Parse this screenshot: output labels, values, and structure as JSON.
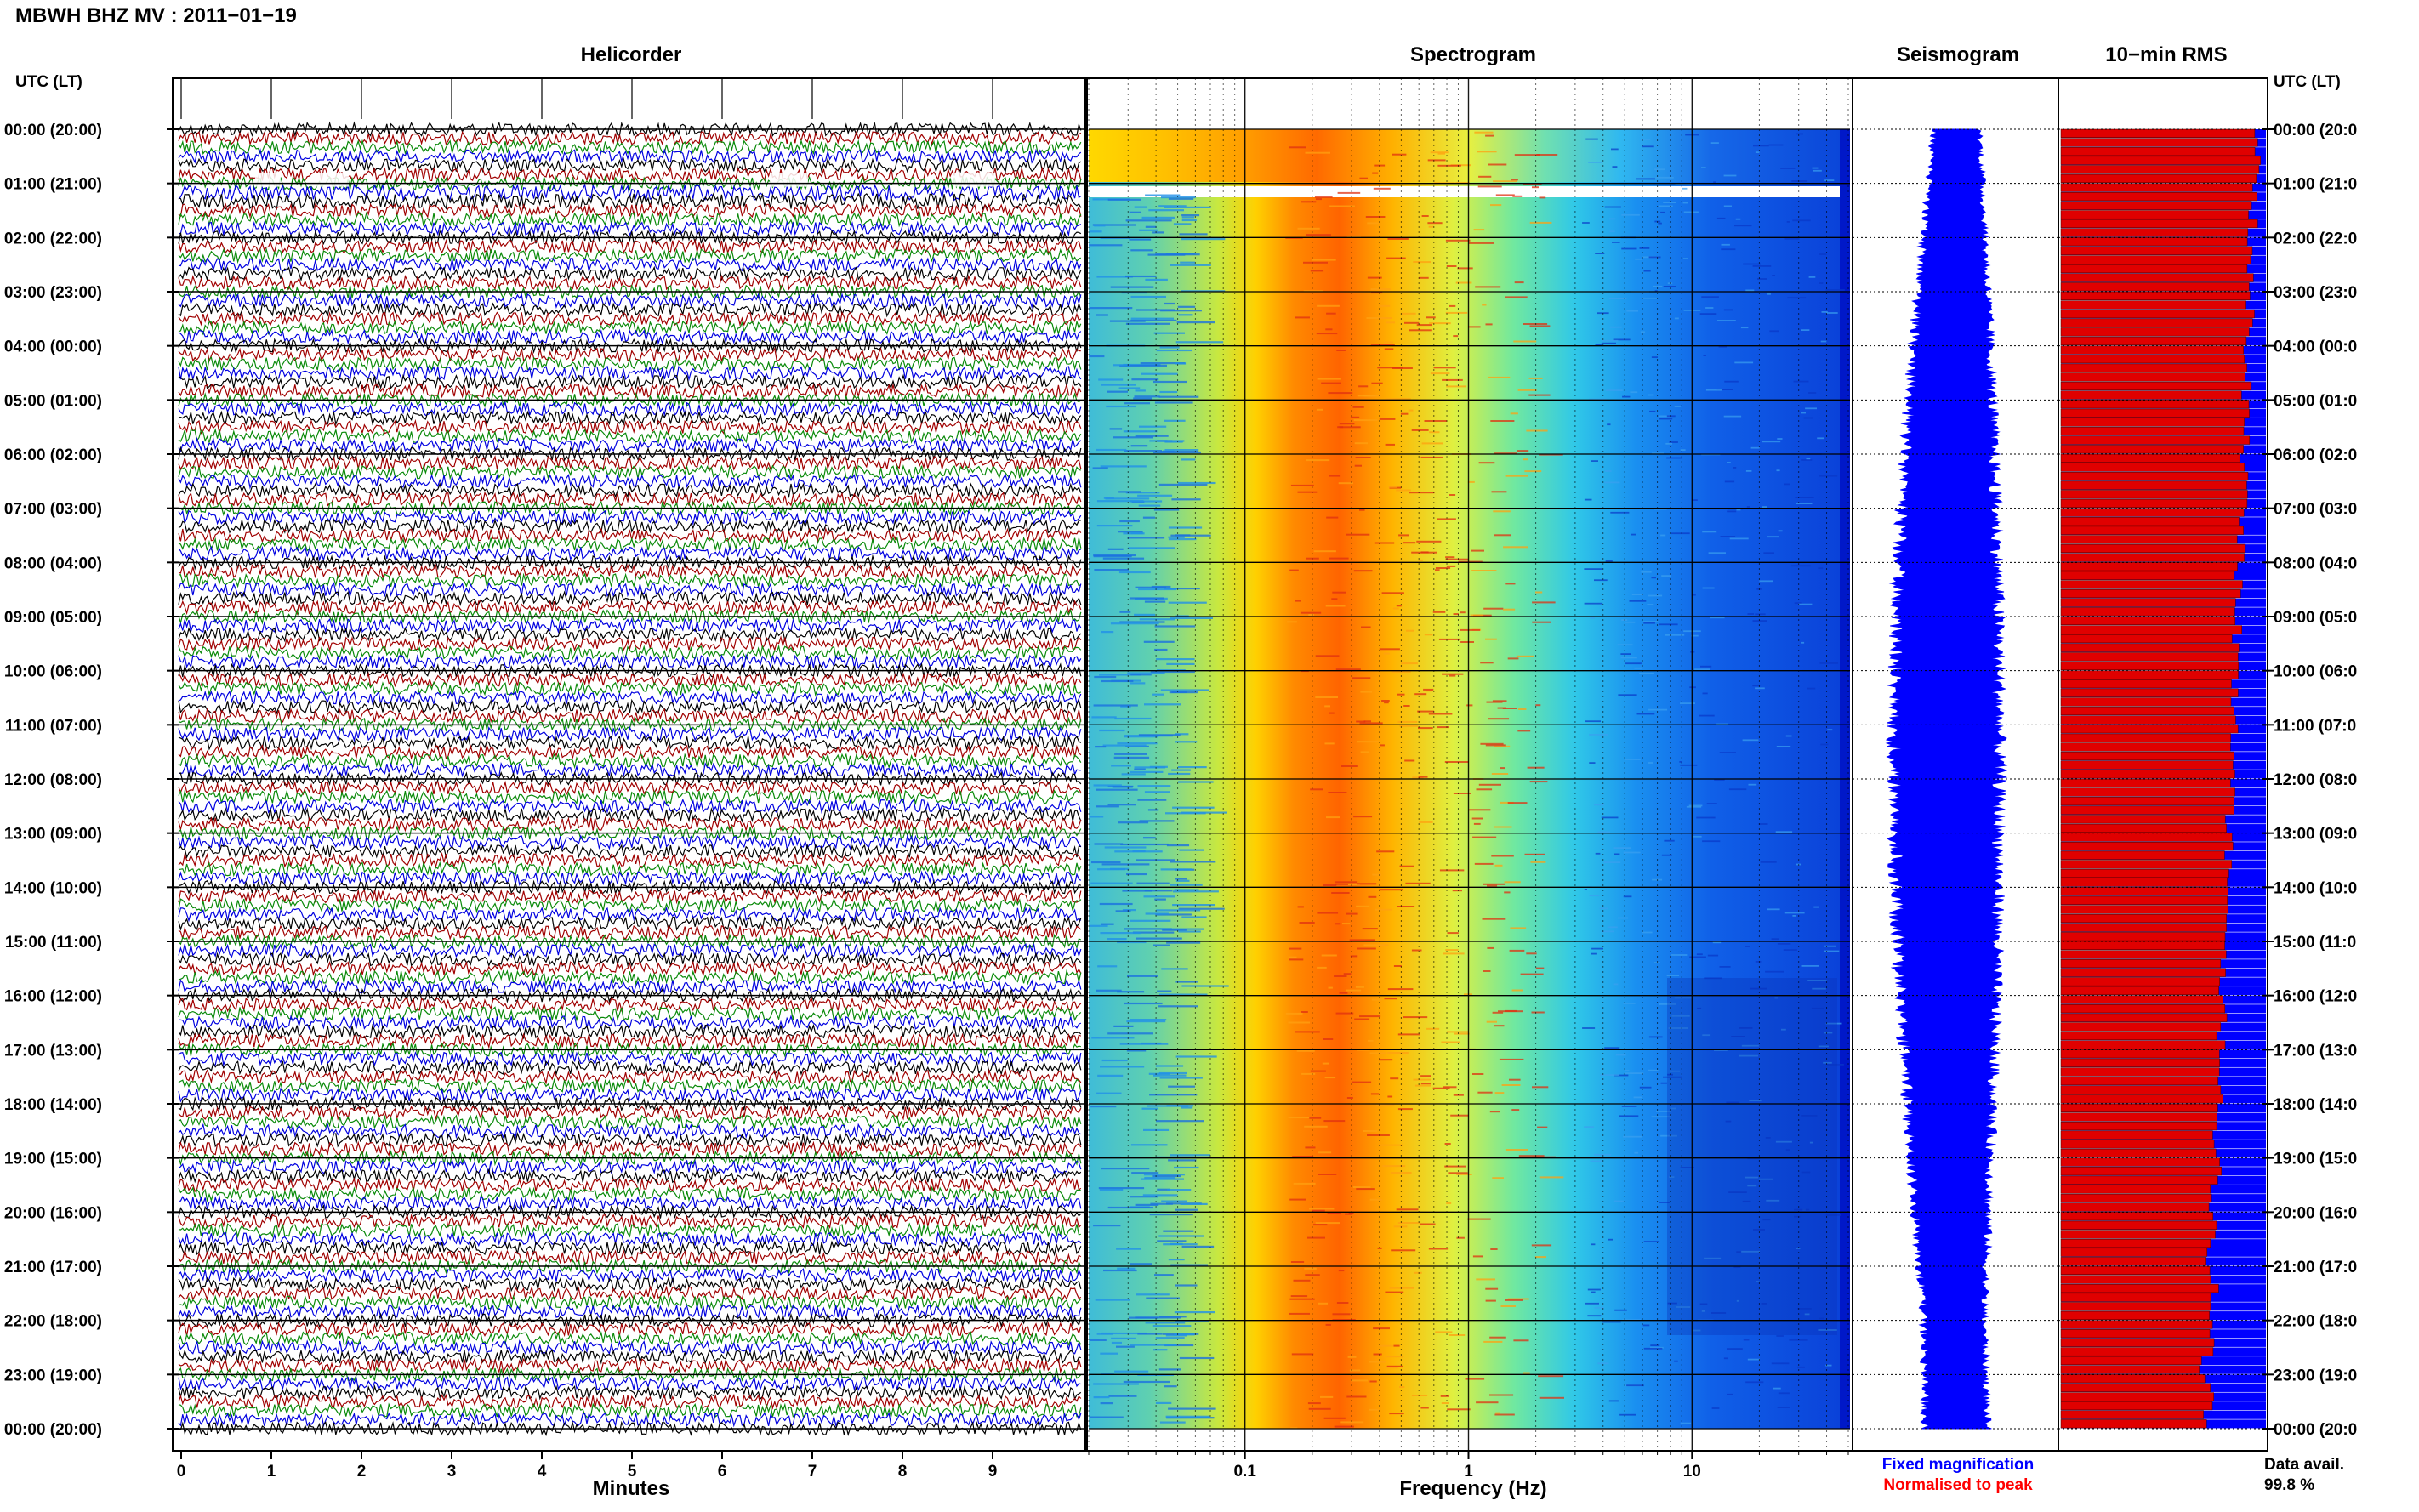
{
  "header": {
    "title": "MBWH BHZ MV : 2011−01−19"
  },
  "panels": {
    "helicorder": "Helicorder",
    "spectrogram": "Spectrogram",
    "seismogram": "Seismogram",
    "rms": "10−min RMS"
  },
  "axis_title_left": "UTC (LT)",
  "axis_title_right": "UTC (LT)",
  "time_labels": [
    "00:00 (20:00)",
    "01:00 (21:00)",
    "02:00 (22:00)",
    "03:00 (23:00)",
    "04:00 (00:00)",
    "05:00 (01:00)",
    "06:00 (02:00)",
    "07:00 (03:00)",
    "08:00 (04:00)",
    "09:00 (05:00)",
    "10:00 (06:00)",
    "11:00 (07:00)",
    "12:00 (08:00)",
    "13:00 (09:00)",
    "14:00 (10:00)",
    "15:00 (11:00)",
    "16:00 (12:00)",
    "17:00 (13:00)",
    "18:00 (14:00)",
    "19:00 (15:00)",
    "20:00 (16:00)",
    "21:00 (17:00)",
    "22:00 (18:00)",
    "23:00 (19:00)",
    "00:00 (20:00)"
  ],
  "right_time_labels": [
    "00:00 (20:0",
    "01:00 (21:0",
    "02:00 (22:0",
    "03:00 (23:0",
    "04:00 (00:0",
    "05:00 (01:0",
    "06:00 (02:0",
    "07:00 (03:0",
    "08:00 (04:0",
    "09:00 (05:0",
    "10:00 (06:0",
    "11:00 (07:0",
    "12:00 (08:0",
    "13:00 (09:0",
    "14:00 (10:0",
    "15:00 (11:0",
    "16:00 (12:0",
    "17:00 (13:0",
    "18:00 (14:0",
    "19:00 (15:0",
    "20:00 (16:0",
    "21:00 (17:0",
    "22:00 (18:0",
    "23:00 (19:0",
    "00:00 (20:0"
  ],
  "helicorder_xlabel": "Minutes",
  "helicorder_ticks": [
    "0",
    "1",
    "2",
    "3",
    "4",
    "5",
    "6",
    "7",
    "8",
    "9"
  ],
  "spectrogram_xlabel": "Frequency (Hz)",
  "spectrogram_ticks": [
    "0.1",
    "1",
    "10"
  ],
  "legend": {
    "fixed": "Fixed magnification",
    "normalised": "Normalised to peak",
    "data_avail_label": "Data avail.",
    "data_avail_value": "99.8 %"
  },
  "colors": {
    "trace_colors": [
      "#000000",
      "#a00000",
      "#0a8a0a",
      "#0000e0"
    ],
    "seismogram": "#0000ff",
    "rms_fixed": "#0000ff",
    "rms_normalised": "#e00000",
    "legend_fixed": "#0000ff",
    "legend_normalised": "#ff0000"
  },
  "chart_data": {
    "type": "heatmap",
    "title": "MBWH BHZ MV : 2011−01−19",
    "helicorder": {
      "x_unit": "Minutes",
      "xlim": [
        0,
        10
      ],
      "rows_per_hour": 6,
      "trace_colors_cycle": [
        "black",
        "darkred",
        "green",
        "blue"
      ]
    },
    "spectrogram": {
      "x_scale": "log",
      "xlim_hz": [
        0.02,
        50
      ],
      "ticks_hz": [
        0.1,
        1,
        10
      ],
      "peak_energy_band_hz": [
        0.2,
        0.5
      ],
      "data_gap_utc": "01:00"
    },
    "data_availability_percent": 99.8
  }
}
